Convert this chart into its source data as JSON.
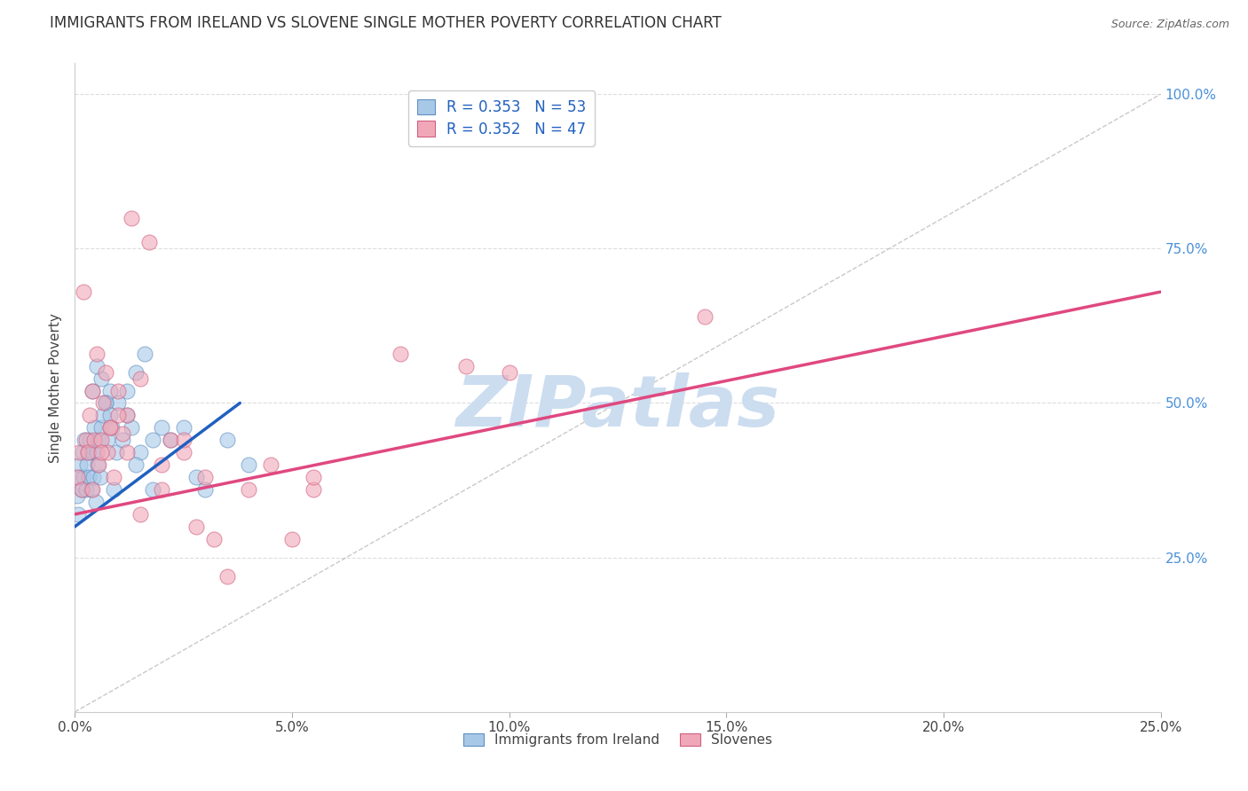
{
  "title": "IMMIGRANTS FROM IRELAND VS SLOVENE SINGLE MOTHER POVERTY CORRELATION CHART",
  "source": "Source: ZipAtlas.com",
  "ylabel": "Single Mother Poverty",
  "x_tick_labels": [
    "0.0%",
    "5.0%",
    "10.0%",
    "15.0%",
    "20.0%",
    "25.0%"
  ],
  "x_tick_vals": [
    0.0,
    5.0,
    10.0,
    15.0,
    20.0,
    25.0
  ],
  "y_tick_labels_right": [
    "100.0%",
    "75.0%",
    "50.0%",
    "25.0%"
  ],
  "y_tick_vals_right": [
    100.0,
    75.0,
    50.0,
    25.0
  ],
  "xlim": [
    0.0,
    25.0
  ],
  "ylim": [
    0.0,
    105.0
  ],
  "legend_entry_blue": "R = 0.353   N = 53",
  "legend_entry_pink": "R = 0.352   N = 47",
  "legend_labels_bottom": [
    "Immigrants from Ireland",
    "Slovenes"
  ],
  "blue_color": "#a8c8e8",
  "pink_color": "#f0a8b8",
  "blue_edge_color": "#6090c0",
  "pink_edge_color": "#d06080",
  "blue_line_color": "#2060c0",
  "pink_line_color": "#e04880",
  "watermark_color": "#ccddf0",
  "background_color": "#ffffff",
  "grid_color": "#dddddd",
  "blue_scatter_x": [
    0.05,
    0.08,
    0.1,
    0.12,
    0.15,
    0.18,
    0.2,
    0.22,
    0.25,
    0.28,
    0.3,
    0.32,
    0.35,
    0.38,
    0.4,
    0.42,
    0.45,
    0.48,
    0.5,
    0.52,
    0.55,
    0.58,
    0.6,
    0.65,
    0.7,
    0.75,
    0.8,
    0.85,
    0.9,
    0.95,
    1.0,
    1.1,
    1.2,
    1.3,
    1.4,
    1.5,
    1.6,
    1.8,
    2.0,
    2.2,
    2.5,
    2.8,
    3.0,
    3.5,
    4.0,
    1.2,
    1.4,
    0.6,
    0.7,
    0.8,
    0.4,
    0.5,
    1.8
  ],
  "blue_scatter_y": [
    35,
    32,
    38,
    40,
    36,
    42,
    38,
    44,
    36,
    40,
    42,
    38,
    44,
    36,
    42,
    38,
    46,
    34,
    42,
    40,
    44,
    38,
    46,
    48,
    50,
    44,
    52,
    46,
    36,
    42,
    50,
    44,
    52,
    46,
    55,
    42,
    58,
    36,
    46,
    44,
    46,
    38,
    36,
    44,
    40,
    48,
    40,
    54,
    50,
    48,
    52,
    56,
    44
  ],
  "pink_scatter_x": [
    0.05,
    0.1,
    0.15,
    0.2,
    0.25,
    0.3,
    0.35,
    0.4,
    0.45,
    0.5,
    0.55,
    0.6,
    0.65,
    0.7,
    0.75,
    0.8,
    0.9,
    1.0,
    1.1,
    1.2,
    1.3,
    1.5,
    1.7,
    2.0,
    2.2,
    2.5,
    2.8,
    3.0,
    3.5,
    4.0,
    4.5,
    5.0,
    5.5,
    7.5,
    9.0,
    10.0,
    14.5,
    0.4,
    0.6,
    0.8,
    1.0,
    1.2,
    2.0,
    2.5,
    1.5,
    3.2,
    5.5
  ],
  "pink_scatter_y": [
    38,
    42,
    36,
    68,
    44,
    42,
    48,
    52,
    44,
    58,
    40,
    44,
    50,
    55,
    42,
    46,
    38,
    52,
    45,
    48,
    80,
    54,
    76,
    36,
    44,
    42,
    30,
    38,
    22,
    36,
    40,
    28,
    36,
    58,
    56,
    55,
    64,
    36,
    42,
    46,
    48,
    42,
    40,
    44,
    32,
    28,
    38
  ],
  "blue_line_x": [
    0.0,
    3.8
  ],
  "blue_line_y": [
    30.0,
    50.0
  ],
  "pink_line_x": [
    0.0,
    25.0
  ],
  "pink_line_y": [
    32.0,
    68.0
  ],
  "diag_line_x": [
    0.0,
    25.0
  ],
  "diag_line_y": [
    0.0,
    100.0
  ]
}
